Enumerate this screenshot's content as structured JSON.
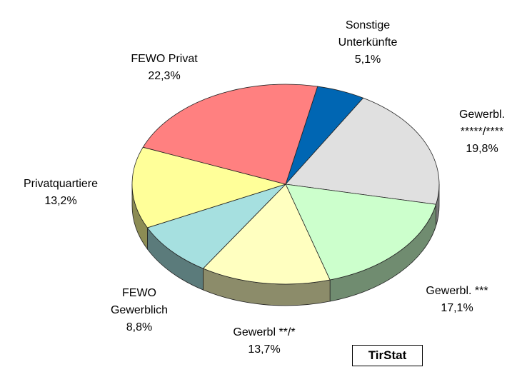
{
  "chart_data": {
    "type": "pie3d",
    "categories": [
      "Sonstige Unterkünfte",
      "Gewerbl. *****/****",
      "Gewerbl. ***",
      "Gewerbl **/*",
      "FEWO Gewerblich",
      "Privatquartiere",
      "FEWO Privat"
    ],
    "values": [
      5.1,
      19.8,
      17.1,
      13.7,
      8.8,
      13.2,
      22.3
    ],
    "value_labels": [
      "5,1%",
      "19,8%",
      "17,1%",
      "13,7%",
      "8,8%",
      "13,2%",
      "22,3%"
    ],
    "colors": [
      "#0066b3",
      "#e0e0e0",
      "#ccffcc",
      "#ffffc0",
      "#a6e0e0",
      "#ffff99",
      "#ff8080"
    ],
    "annotation": "TirStat"
  }
}
